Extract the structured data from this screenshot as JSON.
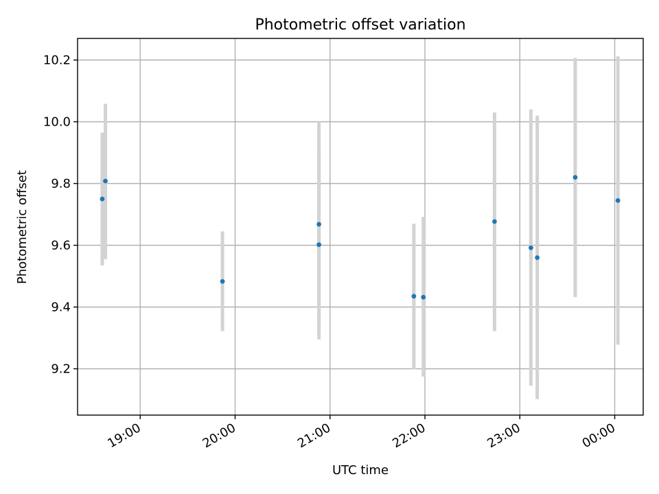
{
  "chart_data": {
    "type": "scatter",
    "title": "Photometric offset variation",
    "xlabel": "UTC time",
    "ylabel": "Photometric offset",
    "x_ticks": [
      "19:00",
      "20:00",
      "21:00",
      "22:00",
      "23:00",
      "00:00"
    ],
    "x_tick_hours": [
      19,
      20,
      21,
      22,
      23,
      24
    ],
    "y_ticks": [
      9.2,
      9.4,
      9.6,
      9.8,
      10.0,
      10.2
    ],
    "xlim_hours": [
      18.34,
      24.3
    ],
    "ylim": [
      9.05,
      10.27
    ],
    "grid": true,
    "colors": {
      "point": "#1f77b4",
      "error_bar": "#d3d3d3"
    },
    "points": [
      {
        "time": "18:36",
        "y": 9.75,
        "err_low": 9.535,
        "err_high": 9.965
      },
      {
        "time": "18:38",
        "y": 9.808,
        "err_low": 9.555,
        "err_high": 10.058
      },
      {
        "time": "19:52",
        "y": 9.483,
        "err_low": 9.322,
        "err_high": 9.645
      },
      {
        "time": "20:53",
        "y": 9.668,
        "err_low": 9.34,
        "err_high": 10.0
      },
      {
        "time": "20:53",
        "y": 9.602,
        "err_low": 9.295,
        "err_high": 9.905
      },
      {
        "time": "21:53",
        "y": 9.435,
        "err_low": 9.198,
        "err_high": 9.67
      },
      {
        "time": "21:59",
        "y": 9.432,
        "err_low": 9.175,
        "err_high": 9.692
      },
      {
        "time": "22:44",
        "y": 9.677,
        "err_low": 9.322,
        "err_high": 10.03
      },
      {
        "time": "23:07",
        "y": 9.592,
        "err_low": 9.145,
        "err_high": 10.04
      },
      {
        "time": "23:11",
        "y": 9.56,
        "err_low": 9.102,
        "err_high": 10.02
      },
      {
        "time": "23:35",
        "y": 9.82,
        "err_low": 9.432,
        "err_high": 10.207
      },
      {
        "time": "00:02",
        "y": 9.745,
        "err_low": 9.278,
        "err_high": 10.212
      }
    ]
  }
}
